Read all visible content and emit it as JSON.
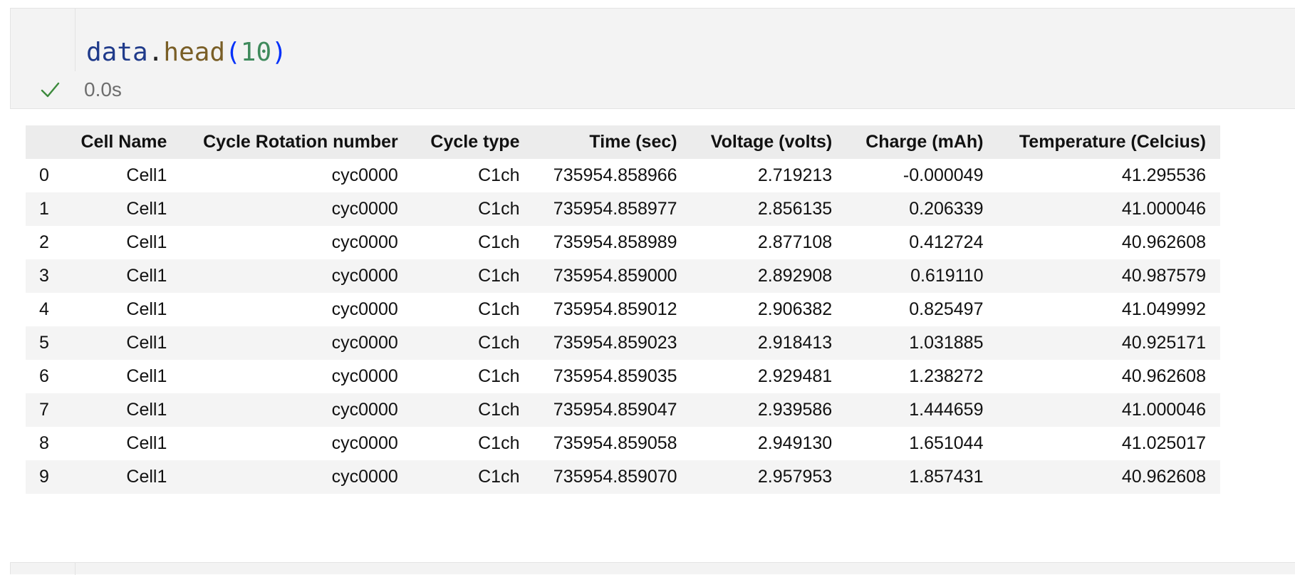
{
  "cell": {
    "code": {
      "var": "data",
      "dot": ".",
      "fn": "head",
      "open": "(",
      "arg": "10",
      "close": ")"
    },
    "status_icon": "check-icon",
    "exec_time": "0.0s"
  },
  "output": {
    "columns": [
      "",
      "Cell Name",
      "Cycle Rotation number",
      "Cycle type",
      "Time (sec)",
      "Voltage (volts)",
      "Charge (mAh)",
      "Temperature (Celcius)"
    ],
    "rows": [
      [
        "0",
        "Cell1",
        "cyc0000",
        "C1ch",
        "735954.858966",
        "2.719213",
        "-0.000049",
        "41.295536"
      ],
      [
        "1",
        "Cell1",
        "cyc0000",
        "C1ch",
        "735954.858977",
        "2.856135",
        "0.206339",
        "41.000046"
      ],
      [
        "2",
        "Cell1",
        "cyc0000",
        "C1ch",
        "735954.858989",
        "2.877108",
        "0.412724",
        "40.962608"
      ],
      [
        "3",
        "Cell1",
        "cyc0000",
        "C1ch",
        "735954.859000",
        "2.892908",
        "0.619110",
        "40.987579"
      ],
      [
        "4",
        "Cell1",
        "cyc0000",
        "C1ch",
        "735954.859012",
        "2.906382",
        "0.825497",
        "41.049992"
      ],
      [
        "5",
        "Cell1",
        "cyc0000",
        "C1ch",
        "735954.859023",
        "2.918413",
        "1.031885",
        "40.925171"
      ],
      [
        "6",
        "Cell1",
        "cyc0000",
        "C1ch",
        "735954.859035",
        "2.929481",
        "1.238272",
        "40.962608"
      ],
      [
        "7",
        "Cell1",
        "cyc0000",
        "C1ch",
        "735954.859047",
        "2.939586",
        "1.444659",
        "41.000046"
      ],
      [
        "8",
        "Cell1",
        "cyc0000",
        "C1ch",
        "735954.859058",
        "2.949130",
        "1.651044",
        "41.025017"
      ],
      [
        "9",
        "Cell1",
        "cyc0000",
        "C1ch",
        "735954.859070",
        "2.957953",
        "1.857431",
        "40.962608"
      ]
    ]
  },
  "colors": {
    "success": "#3c8a3c",
    "cell_background": "#f3f3f3"
  }
}
